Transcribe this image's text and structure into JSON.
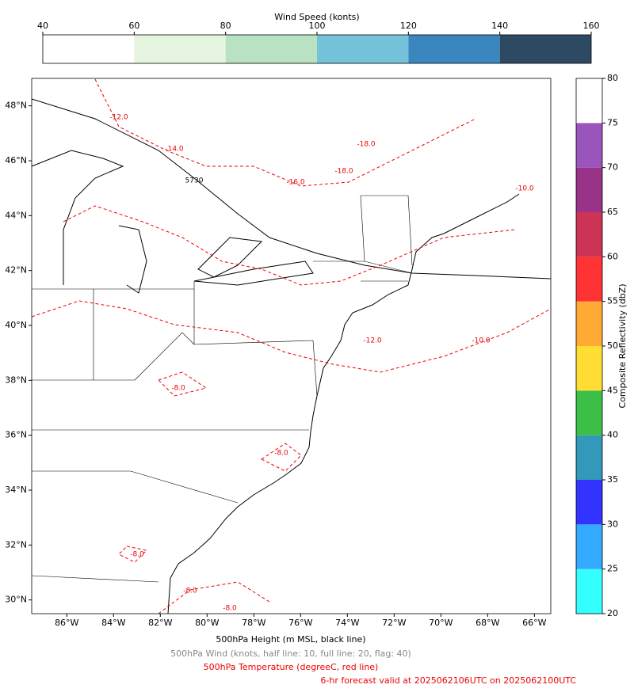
{
  "wind_colorbar": {
    "label": "Wind Speed (konts)",
    "lim": [
      40,
      160
    ],
    "ticks": [
      40,
      60,
      80,
      100,
      120,
      140,
      160
    ],
    "colors": [
      "#ffffff",
      "#e5f5e0",
      "#b8e2c2",
      "#74c3da",
      "#3a87c0",
      "#2e4a62"
    ]
  },
  "reflectivity_colorbar": {
    "label": "Composite Reflectivity (dbZ)",
    "lim": [
      20,
      80
    ],
    "ticks": [
      20,
      25,
      30,
      35,
      40,
      45,
      50,
      55,
      60,
      65,
      70,
      75,
      80
    ],
    "colors": [
      "#33ffff",
      "#33aaff",
      "#3333ff",
      "#3399bb",
      "#3cbf46",
      "#ffdd33",
      "#ffaa33",
      "#ff3333",
      "#cc3355",
      "#993388",
      "#9955bb",
      "#ffffff"
    ]
  },
  "map": {
    "xlim": [
      -87.5,
      -65.3
    ],
    "ylim": [
      29.5,
      49.0
    ],
    "xticks": [
      {
        "value": -86,
        "label": "86°W"
      },
      {
        "value": -84,
        "label": "84°W"
      },
      {
        "value": -82,
        "label": "82°W"
      },
      {
        "value": -80,
        "label": "80°W"
      },
      {
        "value": -78,
        "label": "78°W"
      },
      {
        "value": -76,
        "label": "76°W"
      },
      {
        "value": -74,
        "label": "74°W"
      },
      {
        "value": -72,
        "label": "72°W"
      },
      {
        "value": -70,
        "label": "70°W"
      },
      {
        "value": -68,
        "label": "68°W"
      },
      {
        "value": -66,
        "label": "66°W"
      }
    ],
    "yticks": [
      {
        "value": 30,
        "label": "30°N"
      },
      {
        "value": 32,
        "label": "32°N"
      },
      {
        "value": 34,
        "label": "34°N"
      },
      {
        "value": 36,
        "label": "36°N"
      },
      {
        "value": 38,
        "label": "38°N"
      },
      {
        "value": 40,
        "label": "40°N"
      },
      {
        "value": 42,
        "label": "42°N"
      },
      {
        "value": 44,
        "label": "44°N"
      },
      {
        "value": 46,
        "label": "46°N"
      },
      {
        "value": 48,
        "label": "48°N"
      }
    ],
    "contour_labels": [
      "-12.0",
      "-14.0",
      "5730",
      "-16.0",
      "-18.0",
      "-18.0",
      "-10.0",
      "-12.0",
      "-10.0",
      "-8.0",
      "-8.0",
      "-8.0",
      "-8.0",
      "-8.0"
    ]
  },
  "captions": [
    "500hPa Height (m MSL, black line)",
    "500hPa Wind (knots, half line: 10, full line: 20, flag: 40)",
    "500hPa Temperature (degreeC, red line)",
    "6-hr forecast valid at 2025062106UTC on 2025062100UTC"
  ]
}
